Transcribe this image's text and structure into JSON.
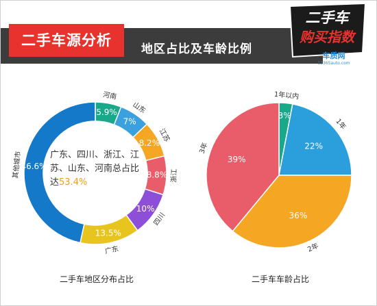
{
  "header": {
    "title": "二手车源分析",
    "subtitle": "地区占比及车龄比例",
    "logo_main": "二手车",
    "logo_sub": "购买指数",
    "logo_brand": "车质网",
    "logo_url": "12365auto.com"
  },
  "left_chart": {
    "caption": "二手车地区分布占比",
    "center_text": "广东、四川、浙江、江苏、山东、河南总占比达",
    "center_value": "53.4%"
  },
  "right_chart": {
    "caption": "二手车车龄占比"
  },
  "colors": {
    "header_band": "#3c3c3c",
    "title_red": "#e8322d",
    "center_highlight": "#f39c12"
  },
  "chart_data": [
    {
      "type": "pie",
      "variant": "donut",
      "title": "二手车地区分布占比",
      "categories": [
        "河南",
        "山东",
        "江苏",
        "浙江",
        "四川",
        "广东",
        "其他城市"
      ],
      "values": [
        5.9,
        7,
        8.2,
        8.8,
        10,
        13.5,
        46.6
      ],
      "value_labels": [
        "5.9%",
        "7%",
        "8.2%",
        "8.8%",
        "10%",
        "13.5%",
        "46.6%"
      ],
      "colors": [
        "#1aa88a",
        "#3aa0de",
        "#f5a623",
        "#e95d6a",
        "#8e4fd8",
        "#e7c51e",
        "#1479c9"
      ]
    },
    {
      "type": "pie",
      "title": "二手车车龄占比",
      "categories": [
        "1年以内",
        "1年",
        "2年",
        "3年"
      ],
      "values": [
        3,
        22,
        36,
        39
      ],
      "value_labels": [
        "3%",
        "22%",
        "36%",
        "39%"
      ],
      "colors": [
        "#1aa88a",
        "#2a9fdc",
        "#f5a623",
        "#e95d6a"
      ]
    }
  ]
}
